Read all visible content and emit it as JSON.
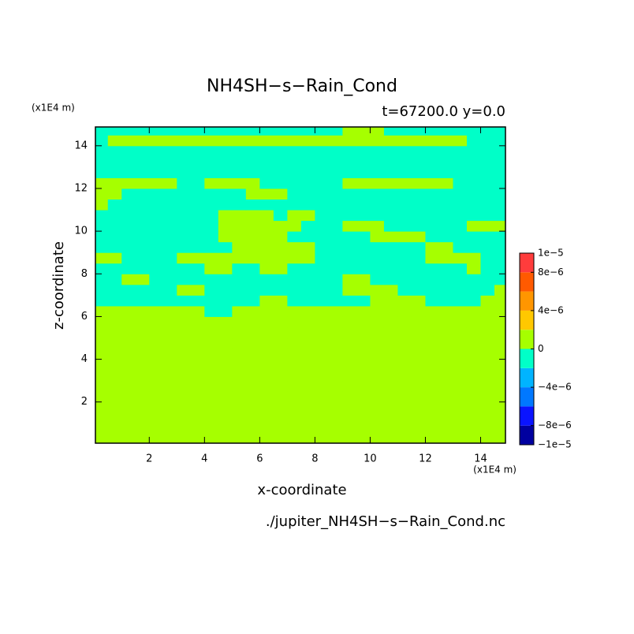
{
  "chart_data": {
    "type": "contour",
    "title": "NH4SH−s−Rain_Cond",
    "subtitle": "t=67200.0 y=0.0",
    "xlabel": "x-coordinate",
    "ylabel": "z-coordinate",
    "x_unit": "(x1E4 m)",
    "y_unit": "(x1E4 m)",
    "footer": "./jupiter_NH4SH−s−Rain_Cond.nc",
    "xlim": [
      0.05,
      14.9
    ],
    "ylim": [
      0.07,
      14.88
    ],
    "xticks": [
      2,
      4,
      6,
      8,
      10,
      12,
      14
    ],
    "yticks": [
      2,
      4,
      6,
      8,
      10,
      12,
      14
    ],
    "x": [
      0.25,
      0.75,
      1.25,
      1.75,
      2.25,
      2.75,
      3.25,
      3.75,
      4.25,
      4.75,
      5.25,
      5.75,
      6.25,
      6.75,
      7.25,
      7.75,
      8.25,
      8.75,
      9.25,
      9.75,
      10.25,
      10.75,
      11.25,
      11.75,
      12.25,
      12.75,
      13.25,
      13.75,
      14.25,
      14.75
    ],
    "y": [
      0.25,
      0.75,
      1.25,
      1.75,
      2.25,
      2.75,
      3.25,
      3.75,
      4.25,
      4.75,
      5.25,
      5.75,
      6.25,
      6.75,
      7.25,
      7.75,
      8.25,
      8.75,
      9.25,
      9.75,
      10.25,
      10.75,
      11.25,
      11.75,
      12.25,
      12.75,
      13.25,
      13.75,
      14.25,
      14.75
    ],
    "z": [
      [
        0,
        0,
        0,
        0,
        0,
        0,
        0,
        0,
        0,
        0,
        0,
        0,
        0,
        0,
        0,
        0,
        0,
        0,
        0,
        0,
        0,
        0,
        0,
        0,
        0,
        0,
        0,
        0,
        0,
        0
      ],
      [
        0,
        0,
        0,
        0,
        0,
        0,
        0,
        0,
        0,
        0,
        0,
        0,
        0,
        0,
        0,
        0,
        0,
        0,
        0,
        0,
        0,
        0,
        0,
        0,
        0,
        0,
        0,
        0,
        0,
        0
      ],
      [
        0,
        0,
        0,
        0,
        0,
        0,
        0,
        0,
        0,
        0,
        0,
        0,
        0,
        0,
        0,
        0,
        0,
        0,
        0,
        0,
        0,
        0,
        0,
        0,
        0,
        0,
        0,
        0,
        0,
        0
      ],
      [
        0,
        0,
        0,
        0,
        0,
        0,
        0,
        0,
        0,
        0,
        0,
        0,
        0,
        0,
        0,
        0,
        0,
        0,
        0,
        0,
        0,
        0,
        0,
        0,
        0,
        0,
        0,
        0,
        0,
        0
      ],
      [
        0,
        0,
        0,
        0,
        0,
        0,
        0,
        0,
        0,
        0,
        0,
        0,
        0,
        0,
        0,
        0,
        0,
        0,
        0,
        0,
        0,
        0,
        0,
        0,
        0,
        0,
        0,
        0,
        0,
        0
      ],
      [
        0,
        0,
        0,
        0,
        0,
        0,
        0,
        0,
        0,
        0,
        0,
        0,
        0,
        0,
        0,
        0,
        0,
        0,
        0,
        0,
        0,
        0,
        0,
        0,
        0,
        0,
        0,
        0,
        0,
        0
      ],
      [
        0,
        0,
        0,
        0,
        0,
        0,
        0,
        0,
        0,
        0,
        0,
        0,
        0,
        0,
        0,
        0,
        0,
        0,
        0,
        0,
        0,
        0,
        0,
        0,
        0,
        0,
        0,
        0,
        0,
        0
      ],
      [
        0,
        0,
        0,
        0,
        0,
        0,
        0,
        0,
        0,
        0,
        0,
        0,
        0,
        0,
        0,
        0,
        0,
        0,
        0,
        0,
        0,
        0,
        0,
        0,
        0,
        0,
        0,
        0,
        0,
        0
      ],
      [
        0,
        0,
        0,
        0,
        0,
        0,
        0,
        0,
        0,
        0,
        0,
        0,
        0,
        0,
        0,
        0,
        0,
        0,
        0,
        0,
        0,
        0,
        0,
        0,
        0,
        0,
        0,
        0,
        0,
        0
      ],
      [
        0,
        0,
        0,
        0,
        0,
        0,
        0,
        0,
        0,
        0,
        0,
        0,
        0,
        0,
        0,
        0,
        0,
        0,
        0,
        0,
        0,
        0,
        0,
        0,
        0,
        0,
        0,
        0,
        0,
        0
      ],
      [
        0,
        0,
        0,
        0,
        0,
        0,
        0,
        0,
        0,
        0,
        0,
        0,
        0,
        0,
        0,
        0,
        0,
        0,
        0,
        0,
        0,
        0,
        0,
        0,
        0,
        0,
        0,
        0,
        0,
        0
      ],
      [
        0,
        0,
        0,
        0,
        0,
        0,
        0,
        0,
        0,
        0,
        0,
        0,
        0,
        0,
        0,
        0,
        0,
        0,
        0,
        0,
        0,
        0,
        0,
        0,
        0,
        0,
        0,
        0,
        0,
        0
      ],
      [
        0,
        0,
        0,
        0,
        0,
        0,
        0,
        0,
        -1e-06,
        -1e-06,
        0,
        0,
        0,
        0,
        0,
        0,
        0,
        0,
        0,
        0,
        0,
        0,
        0,
        0,
        0,
        0,
        0,
        0,
        0,
        0
      ],
      [
        -1e-06,
        -1e-06,
        -1e-06,
        -1e-06,
        -1e-06,
        -1e-06,
        -1e-06,
        -1e-06,
        -1e-06,
        -1e-06,
        -1e-06,
        -1e-06,
        0,
        0,
        -1e-06,
        -1e-06,
        -1e-06,
        -1e-06,
        -1e-06,
        -1e-06,
        0,
        0,
        0,
        0,
        -1e-06,
        -1e-06,
        -1e-06,
        -1e-06,
        0,
        0
      ],
      [
        -1e-06,
        -1e-06,
        -1e-06,
        -1e-06,
        -1e-06,
        -1e-06,
        0,
        0,
        -1e-06,
        -1e-06,
        -1e-06,
        -1e-06,
        -1e-06,
        -1e-06,
        -1e-06,
        -1e-06,
        -1e-06,
        -1e-06,
        0,
        0,
        0,
        0,
        -1e-06,
        -1e-06,
        -1e-06,
        -1e-06,
        -1e-06,
        -1e-06,
        -1e-06,
        0
      ],
      [
        -1e-06,
        -1e-06,
        0,
        0,
        -1e-06,
        -1e-06,
        -1e-06,
        -1e-06,
        -1e-06,
        -1e-06,
        -1e-06,
        -1e-06,
        -1e-06,
        -1e-06,
        -1e-06,
        -1e-06,
        -1e-06,
        -1e-06,
        0,
        0,
        -1e-06,
        -1e-06,
        -1e-06,
        -1e-06,
        -1e-06,
        -1e-06,
        -1e-06,
        -1e-06,
        -1e-06,
        -1e-06
      ],
      [
        -1e-06,
        -1e-06,
        -1e-06,
        -1e-06,
        -1e-06,
        -1e-06,
        -1e-06,
        -1e-06,
        0,
        0,
        -1e-06,
        -1e-06,
        0,
        0,
        -1e-06,
        -1e-06,
        -1e-06,
        -1e-06,
        -1e-06,
        -1e-06,
        -1e-06,
        -1e-06,
        -1e-06,
        -1e-06,
        -1e-06,
        -1e-06,
        -1e-06,
        0,
        -1e-06,
        -1e-06
      ],
      [
        0,
        0,
        -1e-06,
        -1e-06,
        -1e-06,
        -1e-06,
        0,
        0,
        0,
        0,
        0,
        0,
        0,
        0,
        0,
        0,
        -1e-06,
        -1e-06,
        -1e-06,
        -1e-06,
        -1e-06,
        -1e-06,
        -1e-06,
        -1e-06,
        0,
        0,
        0,
        0,
        -1e-06,
        -1e-06
      ],
      [
        -1e-06,
        -1e-06,
        -1e-06,
        -1e-06,
        -1e-06,
        -1e-06,
        -1e-06,
        -1e-06,
        -1e-06,
        -1e-06,
        0,
        0,
        0,
        0,
        0,
        0,
        -1e-06,
        -1e-06,
        -1e-06,
        -1e-06,
        -1e-06,
        -1e-06,
        -1e-06,
        -1e-06,
        0,
        0,
        -1e-06,
        -1e-06,
        -1e-06,
        -1e-06
      ],
      [
        -1e-06,
        -1e-06,
        -1e-06,
        -1e-06,
        -1e-06,
        -1e-06,
        -1e-06,
        -1e-06,
        -1e-06,
        0,
        0,
        0,
        0,
        0,
        -1e-06,
        -1e-06,
        -1e-06,
        -1e-06,
        -1e-06,
        -1e-06,
        0,
        0,
        0,
        0,
        -1e-06,
        -1e-06,
        -1e-06,
        -1e-06,
        -1e-06,
        -1e-06
      ],
      [
        -1e-06,
        -1e-06,
        -1e-06,
        -1e-06,
        -1e-06,
        -1e-06,
        -1e-06,
        -1e-06,
        -1e-06,
        0,
        0,
        0,
        0,
        0,
        0,
        -1e-06,
        -1e-06,
        -1e-06,
        0,
        0,
        0,
        -1e-06,
        -1e-06,
        -1e-06,
        -1e-06,
        -1e-06,
        -1e-06,
        0,
        0,
        0
      ],
      [
        -1e-06,
        -1e-06,
        -1e-06,
        -1e-06,
        -1e-06,
        -1e-06,
        -1e-06,
        -1e-06,
        -1e-06,
        0,
        0,
        0,
        0,
        -1e-06,
        0,
        0,
        -1e-06,
        -1e-06,
        -1e-06,
        -1e-06,
        -1e-06,
        -1e-06,
        -1e-06,
        -1e-06,
        -1e-06,
        -1e-06,
        -1e-06,
        -1e-06,
        -1e-06,
        -1e-06
      ],
      [
        0,
        -1e-06,
        -1e-06,
        -1e-06,
        -1e-06,
        -1e-06,
        -1e-06,
        -1e-06,
        -1e-06,
        -1e-06,
        -1e-06,
        -1e-06,
        -1e-06,
        -1e-06,
        -1e-06,
        -1e-06,
        -1e-06,
        -1e-06,
        -1e-06,
        -1e-06,
        -1e-06,
        -1e-06,
        -1e-06,
        -1e-06,
        -1e-06,
        -1e-06,
        -1e-06,
        -1e-06,
        -1e-06,
        -1e-06
      ],
      [
        0,
        0,
        -1e-06,
        -1e-06,
        -1e-06,
        -1e-06,
        -1e-06,
        -1e-06,
        -1e-06,
        -1e-06,
        -1e-06,
        0,
        0,
        0,
        -1e-06,
        -1e-06,
        -1e-06,
        -1e-06,
        -1e-06,
        -1e-06,
        -1e-06,
        -1e-06,
        -1e-06,
        -1e-06,
        -1e-06,
        -1e-06,
        -1e-06,
        -1e-06,
        -1e-06,
        -1e-06
      ],
      [
        0,
        0,
        0,
        0,
        0,
        0,
        -1e-06,
        -1e-06,
        0,
        0,
        0,
        0,
        -1e-06,
        -1e-06,
        -1e-06,
        -1e-06,
        -1e-06,
        -1e-06,
        0,
        0,
        0,
        0,
        0,
        0,
        0,
        0,
        -1e-06,
        -1e-06,
        -1e-06,
        -1e-06
      ],
      [
        -1e-06,
        -1e-06,
        -1e-06,
        -1e-06,
        -1e-06,
        -1e-06,
        -1e-06,
        -1e-06,
        -1e-06,
        -1e-06,
        -1e-06,
        -1e-06,
        -1e-06,
        -1e-06,
        -1e-06,
        -1e-06,
        -1e-06,
        -1e-06,
        -1e-06,
        -1e-06,
        -1e-06,
        -1e-06,
        -1e-06,
        -1e-06,
        -1e-06,
        -1e-06,
        -1e-06,
        -1e-06,
        -1e-06,
        -1e-06
      ],
      [
        -1e-06,
        -1e-06,
        -1e-06,
        -1e-06,
        -1e-06,
        -1e-06,
        -1e-06,
        -1e-06,
        -1e-06,
        -1e-06,
        -1e-06,
        -1e-06,
        -1e-06,
        -1e-06,
        -1e-06,
        -1e-06,
        -1e-06,
        -1e-06,
        -1e-06,
        -1e-06,
        -1e-06,
        -1e-06,
        -1e-06,
        -1e-06,
        -1e-06,
        -1e-06,
        -1e-06,
        -1e-06,
        -1e-06,
        -1e-06
      ],
      [
        -1e-06,
        -1e-06,
        -1e-06,
        -1e-06,
        -1e-06,
        -1e-06,
        -1e-06,
        -1e-06,
        -1e-06,
        -1e-06,
        -1e-06,
        -1e-06,
        -1e-06,
        -1e-06,
        -1e-06,
        -1e-06,
        -1e-06,
        -1e-06,
        -1e-06,
        -1e-06,
        -1e-06,
        -1e-06,
        -1e-06,
        -1e-06,
        -1e-06,
        -1e-06,
        -1e-06,
        -1e-06,
        -1e-06,
        -1e-06
      ],
      [
        -1e-06,
        0,
        0,
        0,
        0,
        0,
        0,
        0,
        0,
        0,
        0,
        0,
        0,
        0,
        0,
        0,
        0,
        0,
        0,
        0,
        0,
        0,
        0,
        0,
        0,
        0,
        0,
        -1e-06,
        -1e-06,
        -1e-06
      ],
      [
        -1e-06,
        -1e-06,
        -1e-06,
        -1e-06,
        -1e-06,
        -1e-06,
        -1e-06,
        -1e-06,
        -1e-06,
        -1e-06,
        -1e-06,
        -1e-06,
        -1e-06,
        -1e-06,
        -1e-06,
        -1e-06,
        -1e-06,
        -1e-06,
        0,
        0,
        0,
        -1e-06,
        -1e-06,
        -1e-06,
        -1e-06,
        -1e-06,
        -1e-06,
        -1e-06,
        -1e-06,
        -1e-06
      ]
    ],
    "levels": [
      -1e-05,
      -8e-06,
      -6e-06,
      -4e-06,
      -2e-06,
      0,
      2e-06,
      4e-06,
      6e-06,
      8e-06,
      1e-05
    ],
    "colors": [
      "#0000a0",
      "#0a14ff",
      "#0078ff",
      "#00b4ff",
      "#00ffc8",
      "#a6ff00",
      "#ffc800",
      "#ff9600",
      "#ff5a00",
      "#ff3c3c"
    ],
    "cticks": [
      {
        "value": -1e-05,
        "label": "−1e−5"
      },
      {
        "value": -8e-06,
        "label": "−8e−6"
      },
      {
        "value": -4e-06,
        "label": "−4e−6"
      },
      0,
      {
        "value": 4e-06,
        "label": "4e−6"
      },
      {
        "value": 8e-06,
        "label": "8e−6"
      },
      {
        "value": 1e-05,
        "label": "1e−5"
      }
    ]
  }
}
